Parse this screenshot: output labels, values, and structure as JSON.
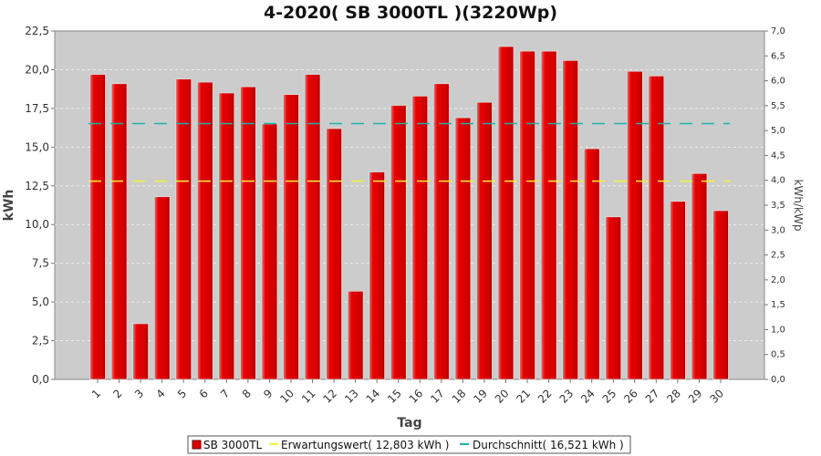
{
  "chart_data": {
    "type": "bar",
    "title": "4-2020( SB 3000TL )(3220Wp)",
    "xlabel": "Tag",
    "ylabel": "kWh",
    "ylabel_right": "kWh/kWp",
    "categories": [
      "1",
      "2",
      "3",
      "4",
      "5",
      "6",
      "7",
      "8",
      "9",
      "10",
      "11",
      "12",
      "13",
      "14",
      "15",
      "16",
      "17",
      "18",
      "19",
      "20",
      "21",
      "22",
      "23",
      "24",
      "25",
      "26",
      "27",
      "28",
      "29",
      "30"
    ],
    "series": [
      {
        "name": "SB 3000TL",
        "color": "#e00000",
        "values": [
          19.7,
          19.1,
          3.6,
          11.8,
          19.4,
          19.2,
          18.5,
          18.9,
          16.5,
          18.4,
          19.7,
          16.2,
          5.7,
          13.4,
          17.7,
          18.3,
          19.1,
          16.9,
          17.9,
          21.5,
          21.2,
          21.2,
          20.6,
          14.9,
          10.5,
          19.9,
          19.6,
          11.5,
          13.3,
          10.9
        ]
      }
    ],
    "expectation": {
      "label": "Erwartungswert( 12,803 kWh )",
      "value": 12.803,
      "color": "#f2f23a"
    },
    "average": {
      "label": "Durchschnitt( 16,521 kWh )",
      "value": 16.521,
      "color": "#20b2aa"
    },
    "ylim": [
      0,
      22.5
    ],
    "yticks": [
      "0,0",
      "2,5",
      "5,0",
      "7,5",
      "10,0",
      "12,5",
      "15,0",
      "17,5",
      "20,0",
      "22,5"
    ],
    "y2lim": [
      0,
      7.0
    ],
    "y2ticks": [
      "0,0",
      "0,5",
      "1,0",
      "1,5",
      "2,0",
      "2,5",
      "3,0",
      "3,5",
      "4,0",
      "4,5",
      "5,0",
      "5,5",
      "6,0",
      "6,5",
      "7,0"
    ],
    "grid": true,
    "legend": "bottom",
    "plot_background": "#cccccc"
  }
}
